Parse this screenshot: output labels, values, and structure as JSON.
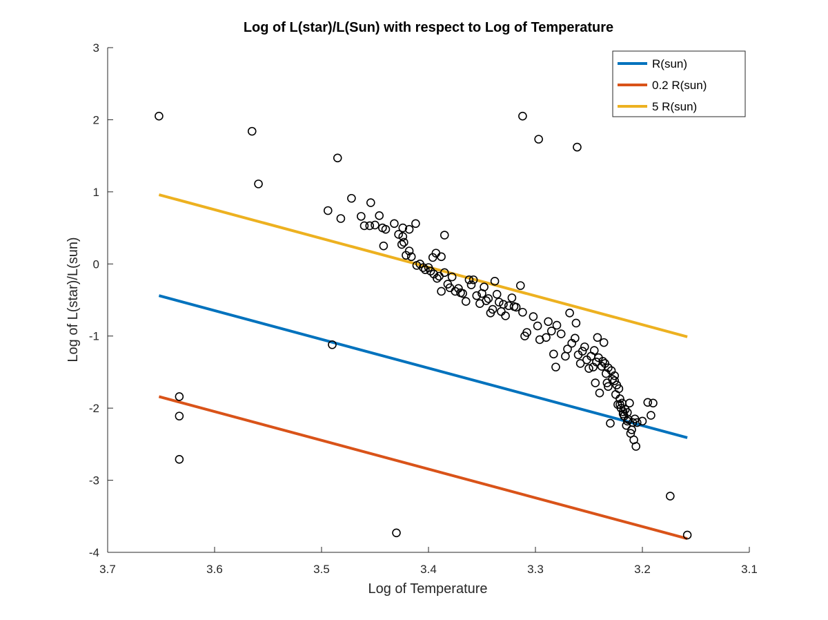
{
  "chart_data": {
    "type": "scatter",
    "title": "Log of L(star)/L(Sun) with respect to Log of Temperature",
    "xlabel": "Log of Temperature",
    "ylabel": "Log of L(star)/L(sun)",
    "xlim": [
      3.1,
      3.7
    ],
    "x_reversed": true,
    "ylim": [
      -4,
      3
    ],
    "xticks": [
      3.7,
      3.6,
      3.5,
      3.4,
      3.3,
      3.2,
      3.1
    ],
    "xtick_labels": [
      "3.7",
      "3.6",
      "3.5",
      "3.4",
      "3.3",
      "3.2",
      "3.1"
    ],
    "yticks": [
      3,
      2,
      1,
      0,
      -1,
      -2,
      -3,
      -4
    ],
    "ytick_labels": [
      "3",
      "2",
      "1",
      "0",
      "-1",
      "-2",
      "-3",
      "-4"
    ],
    "grid": false,
    "legend_position": "top-right",
    "lines": [
      {
        "name": "R(sun)",
        "color": "#0072BD",
        "x": [
          3.652,
          3.158
        ],
        "y": [
          -0.44,
          -2.41
        ]
      },
      {
        "name": "0.2 R(sun)",
        "color": "#D95319",
        "x": [
          3.652,
          3.158
        ],
        "y": [
          -1.84,
          -3.81
        ]
      },
      {
        "name": "5 R(sun)",
        "color": "#EDB120",
        "x": [
          3.652,
          3.158
        ],
        "y": [
          0.96,
          -1.01
        ]
      }
    ],
    "scatter": {
      "marker": "open-circle",
      "color": "#000000",
      "points": [
        [
          3.652,
          2.05
        ],
        [
          3.565,
          1.84
        ],
        [
          3.559,
          1.11
        ],
        [
          3.485,
          1.47
        ],
        [
          3.312,
          2.05
        ],
        [
          3.297,
          1.73
        ],
        [
          3.261,
          1.62
        ],
        [
          3.633,
          -1.84
        ],
        [
          3.633,
          -2.11
        ],
        [
          3.633,
          -2.71
        ],
        [
          3.49,
          -1.12
        ],
        [
          3.43,
          -3.73
        ],
        [
          3.174,
          -3.22
        ],
        [
          3.158,
          -3.76
        ],
        [
          3.494,
          0.74
        ],
        [
          3.472,
          0.91
        ],
        [
          3.482,
          0.63
        ],
        [
          3.463,
          0.66
        ],
        [
          3.454,
          0.85
        ],
        [
          3.46,
          0.53
        ],
        [
          3.455,
          0.53
        ],
        [
          3.45,
          0.54
        ],
        [
          3.446,
          0.67
        ],
        [
          3.443,
          0.5
        ],
        [
          3.44,
          0.48
        ],
        [
          3.432,
          0.56
        ],
        [
          3.428,
          0.41
        ],
        [
          3.424,
          0.5
        ],
        [
          3.424,
          0.38
        ],
        [
          3.418,
          0.48
        ],
        [
          3.412,
          0.56
        ],
        [
          3.442,
          0.25
        ],
        [
          3.425,
          0.27
        ],
        [
          3.423,
          0.3
        ],
        [
          3.421,
          0.12
        ],
        [
          3.416,
          0.1
        ],
        [
          3.418,
          0.18
        ],
        [
          3.385,
          0.4
        ],
        [
          3.388,
          0.1
        ],
        [
          3.393,
          0.15
        ],
        [
          3.396,
          0.09
        ],
        [
          3.411,
          -0.02
        ],
        [
          3.408,
          0.0
        ],
        [
          3.405,
          -0.05
        ],
        [
          3.403,
          -0.08
        ],
        [
          3.4,
          -0.05
        ],
        [
          3.398,
          -0.1
        ],
        [
          3.395,
          -0.14
        ],
        [
          3.392,
          -0.2
        ],
        [
          3.39,
          -0.17
        ],
        [
          3.388,
          -0.38
        ],
        [
          3.385,
          -0.12
        ],
        [
          3.382,
          -0.28
        ],
        [
          3.38,
          -0.33
        ],
        [
          3.378,
          -0.18
        ],
        [
          3.375,
          -0.38
        ],
        [
          3.372,
          -0.34
        ],
        [
          3.37,
          -0.4
        ],
        [
          3.368,
          -0.41
        ],
        [
          3.365,
          -0.52
        ],
        [
          3.362,
          -0.22
        ],
        [
          3.36,
          -0.29
        ],
        [
          3.358,
          -0.22
        ],
        [
          3.355,
          -0.44
        ],
        [
          3.352,
          -0.55
        ],
        [
          3.35,
          -0.41
        ],
        [
          3.348,
          -0.32
        ],
        [
          3.346,
          -0.51
        ],
        [
          3.344,
          -0.48
        ],
        [
          3.342,
          -0.68
        ],
        [
          3.34,
          -0.63
        ],
        [
          3.338,
          -0.24
        ],
        [
          3.336,
          -0.42
        ],
        [
          3.334,
          -0.53
        ],
        [
          3.332,
          -0.66
        ],
        [
          3.33,
          -0.56
        ],
        [
          3.328,
          -0.72
        ],
        [
          3.325,
          -0.58
        ],
        [
          3.322,
          -0.47
        ],
        [
          3.32,
          -0.59
        ],
        [
          3.318,
          -0.6
        ],
        [
          3.314,
          -0.3
        ],
        [
          3.312,
          -0.67
        ],
        [
          3.31,
          -1.0
        ],
        [
          3.308,
          -0.95
        ],
        [
          3.302,
          -0.73
        ],
        [
          3.298,
          -0.86
        ],
        [
          3.296,
          -1.05
        ],
        [
          3.29,
          -1.02
        ],
        [
          3.288,
          -0.8
        ],
        [
          3.285,
          -0.93
        ],
        [
          3.283,
          -1.25
        ],
        [
          3.281,
          -1.43
        ],
        [
          3.28,
          -0.85
        ],
        [
          3.276,
          -0.97
        ],
        [
          3.272,
          -1.28
        ],
        [
          3.27,
          -1.18
        ],
        [
          3.268,
          -0.68
        ],
        [
          3.266,
          -1.1
        ],
        [
          3.263,
          -1.03
        ],
        [
          3.262,
          -0.82
        ],
        [
          3.26,
          -1.26
        ],
        [
          3.258,
          -1.38
        ],
        [
          3.256,
          -1.21
        ],
        [
          3.254,
          -1.15
        ],
        [
          3.252,
          -1.33
        ],
        [
          3.25,
          -1.45
        ],
        [
          3.248,
          -1.28
        ],
        [
          3.246,
          -1.43
        ],
        [
          3.244,
          -1.65
        ],
        [
          3.243,
          -1.36
        ],
        [
          3.242,
          -1.02
        ],
        [
          3.241,
          -1.3
        ],
        [
          3.24,
          -1.79
        ],
        [
          3.238,
          -1.42
        ],
        [
          3.236,
          -1.09
        ],
        [
          3.235,
          -1.38
        ],
        [
          3.234,
          -1.52
        ],
        [
          3.233,
          -1.65
        ],
        [
          3.232,
          -1.44
        ],
        [
          3.23,
          -2.21
        ],
        [
          3.228,
          -1.6
        ],
        [
          3.226,
          -1.55
        ],
        [
          3.225,
          -1.81
        ],
        [
          3.224,
          -1.68
        ],
        [
          3.223,
          -1.95
        ],
        [
          3.222,
          -1.73
        ],
        [
          3.221,
          -1.87
        ],
        [
          3.22,
          -2.0
        ],
        [
          3.219,
          -1.93
        ],
        [
          3.218,
          -2.08
        ],
        [
          3.217,
          -2.11
        ],
        [
          3.216,
          -2.02
        ],
        [
          3.215,
          -2.24
        ],
        [
          3.214,
          -2.06
        ],
        [
          3.213,
          -2.16
        ],
        [
          3.212,
          -1.93
        ],
        [
          3.211,
          -2.35
        ],
        [
          3.21,
          -2.3
        ],
        [
          3.209,
          -2.2
        ],
        [
          3.208,
          -2.44
        ],
        [
          3.207,
          -2.15
        ],
        [
          3.206,
          -2.53
        ],
        [
          3.205,
          -2.2
        ],
        [
          3.2,
          -2.18
        ],
        [
          3.195,
          -1.92
        ],
        [
          3.192,
          -2.1
        ],
        [
          3.19,
          -1.93
        ],
        [
          3.245,
          -1.2
        ],
        [
          3.237,
          -1.35
        ],
        [
          3.229,
          -1.48
        ],
        [
          3.221,
          -1.95
        ],
        [
          3.226,
          -1.62
        ],
        [
          3.232,
          -1.7
        ],
        [
          3.218,
          -2.05
        ],
        [
          3.214,
          -2.18
        ]
      ]
    }
  }
}
